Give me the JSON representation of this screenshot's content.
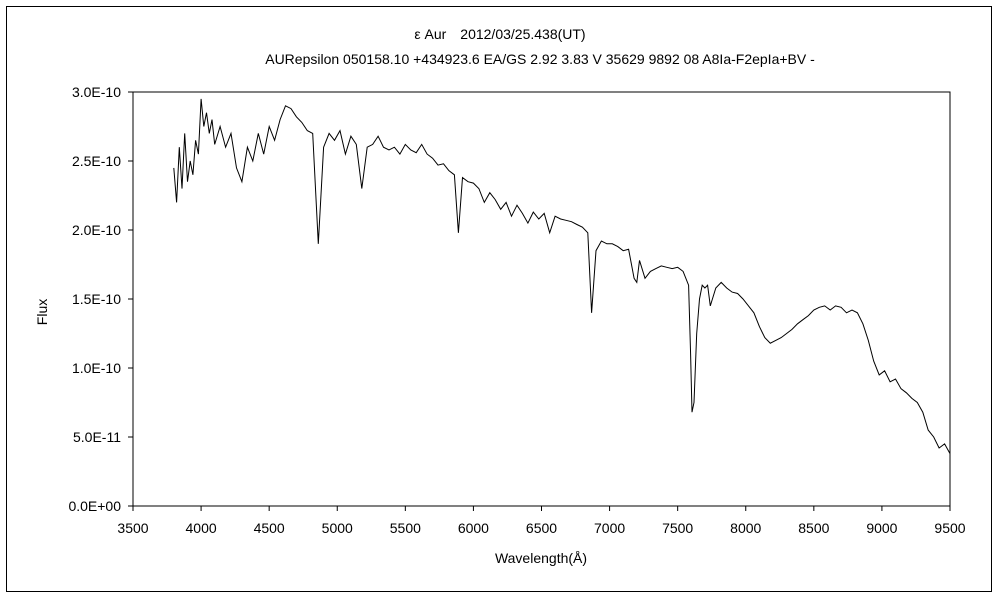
{
  "chart_data": {
    "type": "line",
    "title": "ε Aur　2012/03/25.438(UT)",
    "subtitle": "AURepsilon 050158.10 +434923.6 EA/GS 2.92 3.83 V 35629 9892 08 A8Ia-F2epIa+BV -",
    "xlabel": "Wavelength(Å)",
    "ylabel": "Flux",
    "xlim": [
      3500,
      9500
    ],
    "ylim": [
      0,
      3e-10
    ],
    "x_ticks": [
      "3500",
      "4000",
      "4500",
      "5000",
      "5500",
      "6000",
      "6500",
      "7000",
      "7500",
      "8000",
      "8500",
      "9000",
      "9500"
    ],
    "y_ticks": [
      "0.0E+00",
      "5.0E-11",
      "1.0E-10",
      "1.5E-10",
      "2.0E-10",
      "2.5E-10",
      "3.0E-10"
    ],
    "grid": false,
    "legend": "none",
    "line_color": "#000000",
    "series": [
      {
        "x": [
          3800,
          3820,
          3840,
          3860,
          3880,
          3900,
          3920,
          3940,
          3960,
          3980,
          4000,
          4020,
          4040,
          4060,
          4080,
          4100,
          4140,
          4180,
          4220,
          4260,
          4300,
          4340,
          4380,
          4420,
          4460,
          4500,
          4540,
          4580,
          4620,
          4660,
          4700,
          4740,
          4780,
          4820,
          4861,
          4900,
          4940,
          4980,
          5020,
          5060,
          5100,
          5140,
          5180,
          5220,
          5260,
          5300,
          5340,
          5380,
          5420,
          5460,
          5500,
          5540,
          5580,
          5620,
          5660,
          5700,
          5740,
          5780,
          5820,
          5860,
          5890,
          5920,
          5960,
          6000,
          6040,
          6080,
          6120,
          6160,
          6200,
          6240,
          6280,
          6320,
          6360,
          6400,
          6440,
          6480,
          6520,
          6560,
          6600,
          6640,
          6680,
          6720,
          6760,
          6800,
          6840,
          6868,
          6900,
          6940,
          6980,
          7020,
          7060,
          7100,
          7140,
          7180,
          7200,
          7220,
          7260,
          7300,
          7340,
          7380,
          7420,
          7460,
          7500,
          7540,
          7580,
          7595,
          7605,
          7620,
          7640,
          7660,
          7680,
          7700,
          7720,
          7740,
          7780,
          7820,
          7860,
          7900,
          7940,
          7980,
          8020,
          8060,
          8100,
          8140,
          8180,
          8220,
          8260,
          8300,
          8340,
          8380,
          8420,
          8460,
          8500,
          8540,
          8580,
          8620,
          8660,
          8700,
          8740,
          8780,
          8820,
          8860,
          8900,
          8940,
          8980,
          9020,
          9060,
          9100,
          9140,
          9180,
          9220,
          9260,
          9300,
          9340,
          9380,
          9420,
          9460,
          9500
        ],
        "y": [
          2.45e-10,
          2.2e-10,
          2.6e-10,
          2.3e-10,
          2.7e-10,
          2.35e-10,
          2.5e-10,
          2.4e-10,
          2.65e-10,
          2.55e-10,
          2.95e-10,
          2.75e-10,
          2.85e-10,
          2.7e-10,
          2.8e-10,
          2.62e-10,
          2.75e-10,
          2.6e-10,
          2.7e-10,
          2.45e-10,
          2.35e-10,
          2.6e-10,
          2.5e-10,
          2.7e-10,
          2.55e-10,
          2.75e-10,
          2.65e-10,
          2.8e-10,
          2.9e-10,
          2.88e-10,
          2.82e-10,
          2.78e-10,
          2.72e-10,
          2.7e-10,
          1.9e-10,
          2.6e-10,
          2.7e-10,
          2.65e-10,
          2.72e-10,
          2.55e-10,
          2.68e-10,
          2.62e-10,
          2.3e-10,
          2.6e-10,
          2.62e-10,
          2.68e-10,
          2.6e-10,
          2.58e-10,
          2.6e-10,
          2.55e-10,
          2.62e-10,
          2.58e-10,
          2.56e-10,
          2.62e-10,
          2.55e-10,
          2.52e-10,
          2.47e-10,
          2.48e-10,
          2.43e-10,
          2.4e-10,
          1.98e-10,
          2.38e-10,
          2.35e-10,
          2.34e-10,
          2.3e-10,
          2.2e-10,
          2.27e-10,
          2.22e-10,
          2.15e-10,
          2.2e-10,
          2.1e-10,
          2.18e-10,
          2.12e-10,
          2.05e-10,
          2.13e-10,
          2.08e-10,
          2.12e-10,
          1.98e-10,
          2.1e-10,
          2.08e-10,
          2.07e-10,
          2.06e-10,
          2.04e-10,
          2.02e-10,
          1.98e-10,
          1.4e-10,
          1.85e-10,
          1.92e-10,
          1.9e-10,
          1.9e-10,
          1.88e-10,
          1.85e-10,
          1.86e-10,
          1.65e-10,
          1.62e-10,
          1.78e-10,
          1.65e-10,
          1.7e-10,
          1.72e-10,
          1.74e-10,
          1.73e-10,
          1.72e-10,
          1.73e-10,
          1.7e-10,
          1.6e-10,
          1.1e-10,
          6.8e-11,
          7.5e-11,
          1.25e-10,
          1.5e-10,
          1.6e-10,
          1.58e-10,
          1.6e-10,
          1.45e-10,
          1.58e-10,
          1.62e-10,
          1.58e-10,
          1.55e-10,
          1.54e-10,
          1.5e-10,
          1.45e-10,
          1.4e-10,
          1.3e-10,
          1.22e-10,
          1.18e-10,
          1.2e-10,
          1.22e-10,
          1.25e-10,
          1.28e-10,
          1.32e-10,
          1.35e-10,
          1.38e-10,
          1.42e-10,
          1.44e-10,
          1.45e-10,
          1.42e-10,
          1.45e-10,
          1.44e-10,
          1.4e-10,
          1.42e-10,
          1.4e-10,
          1.32e-10,
          1.2e-10,
          1.05e-10,
          9.5e-11,
          9.8e-11,
          9e-11,
          9.2e-11,
          8.5e-11,
          8.2e-11,
          7.8e-11,
          7.5e-11,
          6.8e-11,
          5.5e-11,
          5e-11,
          4.2e-11,
          4.5e-11,
          3.8e-11
        ]
      }
    ]
  }
}
